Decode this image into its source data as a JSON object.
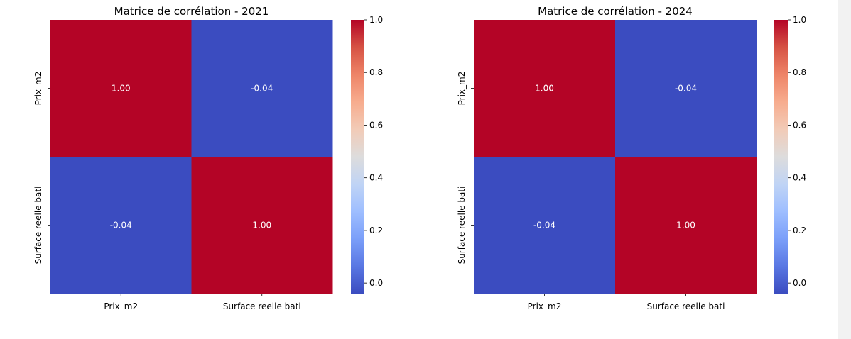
{
  "chart_data": [
    {
      "type": "heatmap",
      "title": "Matrice de corrélation - 2021",
      "x_categories": [
        "Prix_m2",
        "Surface reelle bati"
      ],
      "y_categories": [
        "Prix_m2",
        "Surface reelle bati"
      ],
      "values": [
        [
          1.0,
          -0.04
        ],
        [
          -0.04,
          1.0
        ]
      ],
      "annotations": [
        [
          "1.00",
          "-0.04"
        ],
        [
          "-0.04",
          "1.00"
        ]
      ],
      "colormap": "coolwarm",
      "color_low": "#3b4cc0",
      "color_high": "#b40426",
      "vmin": -0.04,
      "vmax": 1.0,
      "colorbar_ticks": [
        "0.0",
        "0.2",
        "0.4",
        "0.6",
        "0.8",
        "1.0"
      ],
      "colorbar_tick_values": [
        0.0,
        0.2,
        0.4,
        0.6,
        0.8,
        1.0
      ]
    },
    {
      "type": "heatmap",
      "title": "Matrice de corrélation - 2024",
      "x_categories": [
        "Prix_m2",
        "Surface reelle bati"
      ],
      "y_categories": [
        "Prix_m2",
        "Surface reelle bati"
      ],
      "values": [
        [
          1.0,
          -0.04
        ],
        [
          -0.04,
          1.0
        ]
      ],
      "annotations": [
        [
          "1.00",
          "-0.04"
        ],
        [
          "-0.04",
          "1.00"
        ]
      ],
      "colormap": "coolwarm",
      "color_low": "#3b4cc0",
      "color_high": "#b40426",
      "vmin": -0.04,
      "vmax": 1.0,
      "colorbar_ticks": [
        "0.0",
        "0.2",
        "0.4",
        "0.6",
        "0.8",
        "1.0"
      ],
      "colorbar_tick_values": [
        0.0,
        0.2,
        0.4,
        0.6,
        0.8,
        1.0
      ]
    }
  ]
}
